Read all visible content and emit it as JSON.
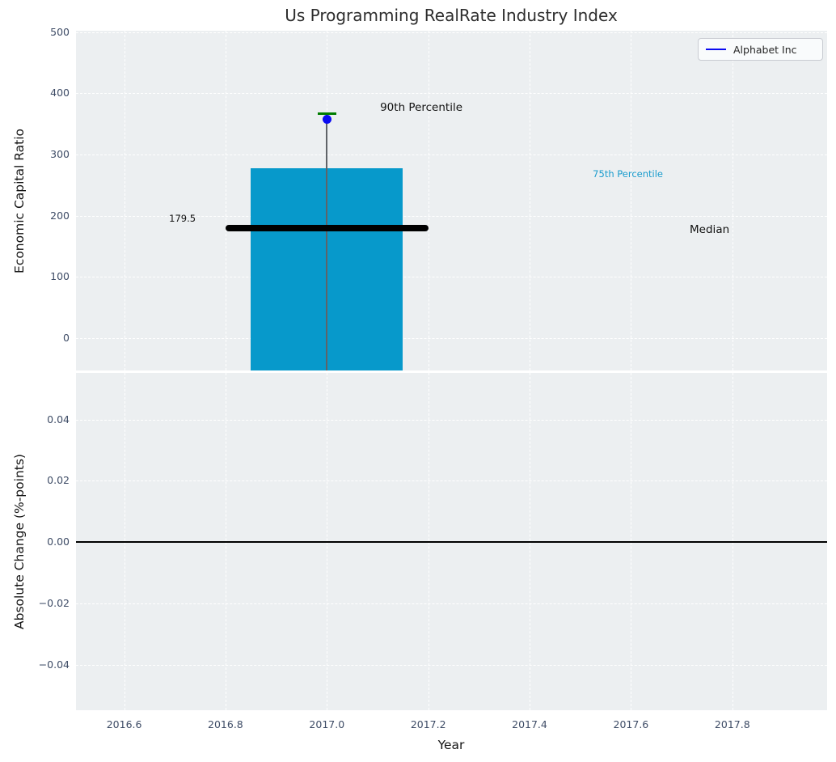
{
  "title": "Us Programming RealRate Industry Index",
  "figure": {
    "axes_bg": "#eceff1",
    "grid_color": "#ffffff",
    "tick_color": "#3e4c66",
    "text_color": "#141414"
  },
  "legend": {
    "position": "upper right",
    "entries": [
      {
        "label": "Alphabet Inc",
        "line_color": "#0b0bf2"
      }
    ]
  },
  "chart_data": [
    {
      "type": "bar",
      "name": "economic-capital-ratio-panel",
      "ylabel": "Economic Capital Ratio",
      "xlabel": "",
      "xlim": [
        2016.505,
        2017.987
      ],
      "ylim": [
        -53,
        502
      ],
      "grid": true,
      "yticks": [
        {
          "v": 0,
          "label": "0"
        },
        {
          "v": 100,
          "label": "100"
        },
        {
          "v": 200,
          "label": "200"
        },
        {
          "v": 300,
          "label": "300"
        },
        {
          "v": 400,
          "label": "400"
        },
        {
          "v": 500,
          "label": "500"
        }
      ],
      "bar": {
        "x": 2017.0,
        "half_width": 0.15,
        "y_top": 277,
        "y_bottom": -60,
        "color": "#0799cb"
      },
      "median_line": {
        "y": 179.5,
        "x_start": 2016.8,
        "x_end": 2017.2,
        "color": "#000000"
      },
      "whisker": {
        "x": 2017.0,
        "y_top": 367,
        "color": "#5f6368",
        "cap_color": "#007c00",
        "cap_half_width": 0.018
      },
      "point": {
        "series": "Alphabet Inc",
        "x": 2017.0,
        "y": 357,
        "color": "#0b0bf2"
      },
      "annotations": [
        {
          "id": "p90-label",
          "text": "90th Percentile",
          "x": 2017.105,
          "y": 376,
          "color": "#111111",
          "anchor": "left",
          "size": 13.5
        },
        {
          "id": "p75-label",
          "text": "75th Percentile",
          "x": 2017.594,
          "y": 268,
          "color": "#1a9ccd",
          "anchor": "center",
          "size": 11.5
        },
        {
          "id": "median-label",
          "text": "Median",
          "x": 2017.755,
          "y": 177,
          "color": "#111111",
          "anchor": "center",
          "size": 13.5
        },
        {
          "id": "median-value",
          "text": "179.5",
          "x": 2016.715,
          "y": 195,
          "color": "#111111",
          "anchor": "center",
          "size": 11.5
        }
      ]
    },
    {
      "type": "line",
      "name": "absolute-change-panel",
      "ylabel": "Absolute Change (%-points)",
      "xlabel": "Year",
      "xlim": [
        2016.505,
        2017.987
      ],
      "ylim": [
        -0.0548,
        0.0552
      ],
      "grid": true,
      "yticks": [
        {
          "v": -0.04,
          "label": "−0.04"
        },
        {
          "v": -0.02,
          "label": "−0.02"
        },
        {
          "v": 0.0,
          "label": "0.00"
        },
        {
          "v": 0.02,
          "label": "0.02"
        },
        {
          "v": 0.04,
          "label": "0.04"
        }
      ],
      "xticks": [
        {
          "v": 2016.6,
          "label": "2016.6"
        },
        {
          "v": 2016.8,
          "label": "2016.8"
        },
        {
          "v": 2017.0,
          "label": "2017.0"
        },
        {
          "v": 2017.2,
          "label": "2017.2"
        },
        {
          "v": 2017.4,
          "label": "2017.4"
        },
        {
          "v": 2017.6,
          "label": "2017.6"
        },
        {
          "v": 2017.8,
          "label": "2017.8"
        }
      ],
      "zero_line": {
        "y": 0.0,
        "color": "#000000"
      },
      "series": []
    }
  ]
}
